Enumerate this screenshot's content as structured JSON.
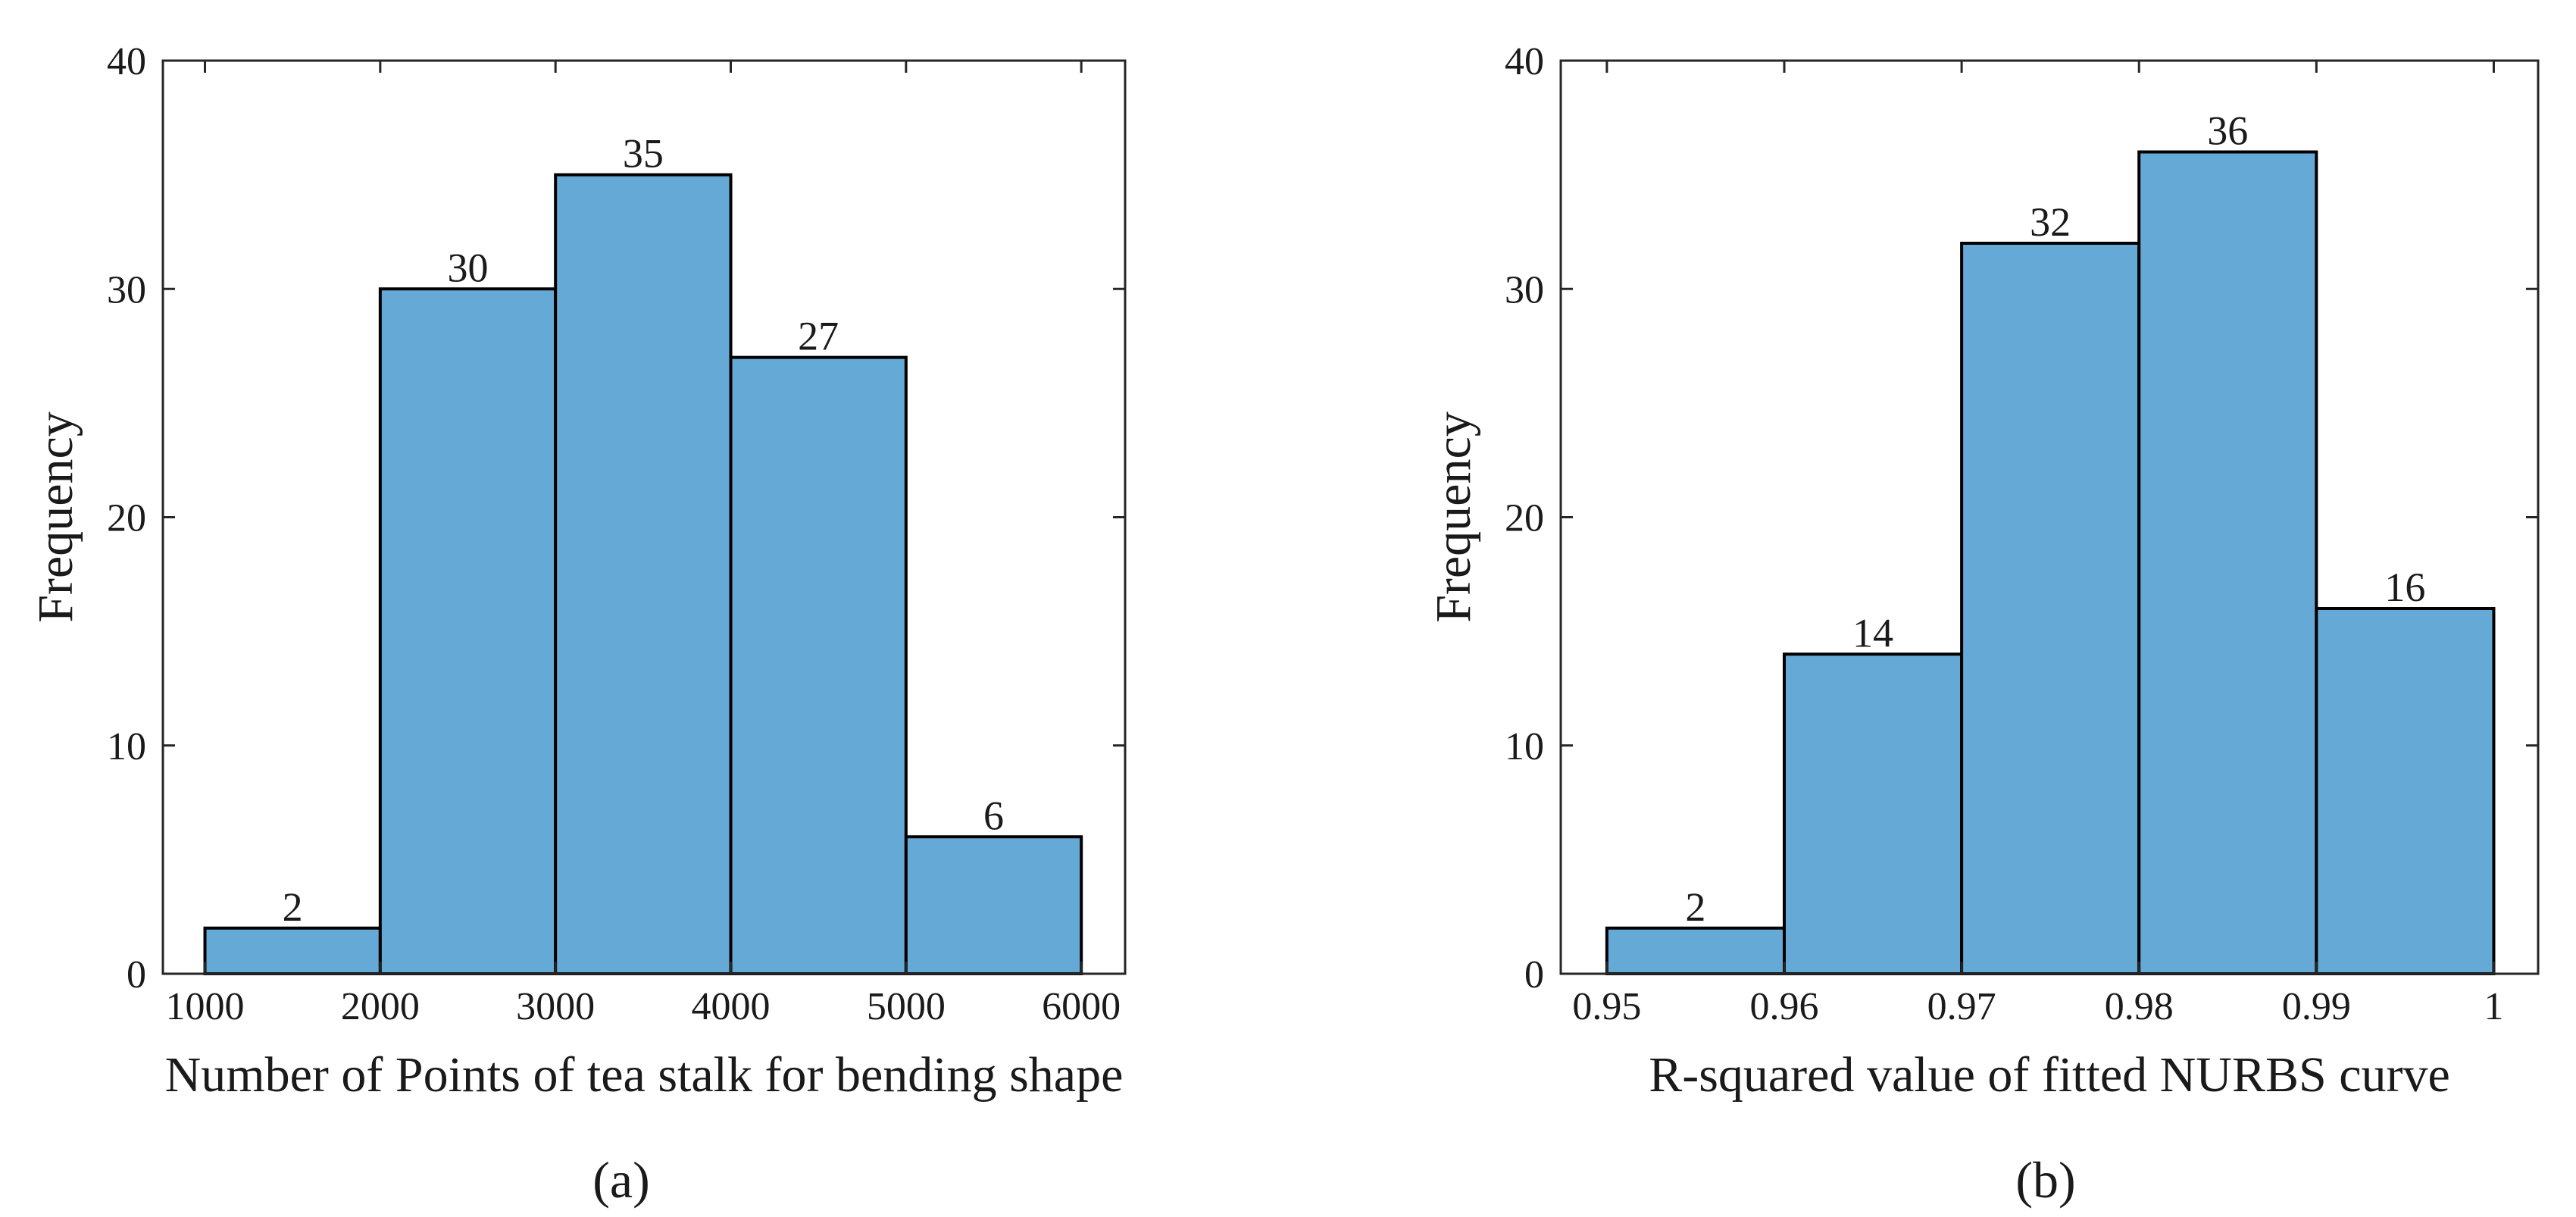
{
  "chart_data": [
    {
      "type": "bar",
      "histogram": true,
      "panel_label": "(a)",
      "title": "",
      "xlabel": "Number of Points of tea stalk for bending shape",
      "ylabel": "Frequency",
      "bin_edges": [
        1000,
        2000,
        3000,
        4000,
        5000,
        6000
      ],
      "values": [
        2,
        30,
        35,
        27,
        6
      ],
      "data_labels": [
        "2",
        "30",
        "35",
        "27",
        "6"
      ],
      "xlim": [
        760,
        6250
      ],
      "ylim": [
        0,
        40
      ],
      "xticks": [
        1000,
        2000,
        3000,
        4000,
        5000,
        6000
      ],
      "xtick_labels": [
        "1000",
        "2000",
        "3000",
        "4000",
        "5000",
        "6000"
      ],
      "yticks": [
        0,
        10,
        20,
        30,
        40
      ],
      "ytick_labels": [
        "0",
        "10",
        "20",
        "30",
        "40"
      ],
      "bar_color": "#65A9D7",
      "grid": false
    },
    {
      "type": "bar",
      "histogram": true,
      "panel_label": "(b)",
      "title": "",
      "xlabel": "R-squared value of fitted NURBS curve",
      "ylabel": "Frequency",
      "bin_edges": [
        0.95,
        0.96,
        0.97,
        0.98,
        0.99,
        1.0
      ],
      "values": [
        2,
        14,
        32,
        36,
        16
      ],
      "data_labels": [
        "2",
        "14",
        "32",
        "36",
        "16"
      ],
      "xlim": [
        0.9474,
        1.0025
      ],
      "ylim": [
        0,
        40
      ],
      "xticks": [
        0.95,
        0.96,
        0.97,
        0.98,
        0.99,
        1.0
      ],
      "xtick_labels": [
        "0.95",
        "0.96",
        "0.97",
        "0.98",
        "0.99",
        "1"
      ],
      "yticks": [
        0,
        10,
        20,
        30,
        40
      ],
      "ytick_labels": [
        "0",
        "10",
        "20",
        "30",
        "40"
      ],
      "bar_color": "#65A9D7",
      "grid": false
    }
  ]
}
